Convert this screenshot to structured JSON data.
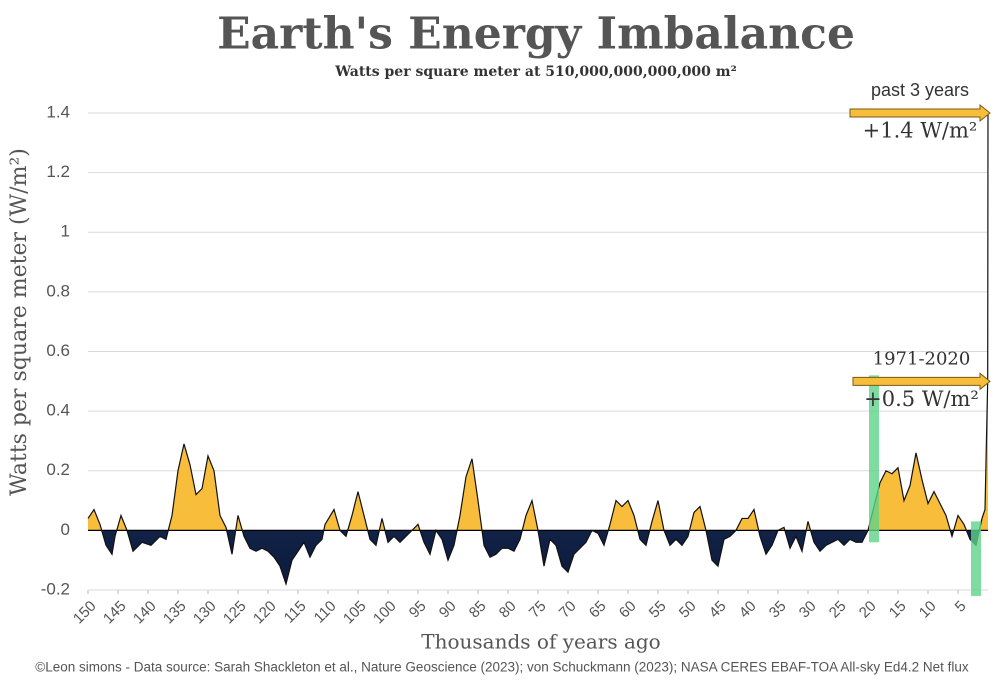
{
  "chart_data": {
    "type": "area",
    "title": "Earth's Energy Imbalance",
    "subtitle": "Watts per square meter at 510,000,000,000,000 m²",
    "x_label": "Thousands of years ago",
    "y_label": "Watts per square meter (W/m²)",
    "source": "©Leon simons - Data source: Sarah Shackleton et al., Nature Geoscience (2023); von Schuckmann (2023); NASA CERES EBAF-TOA All-sky Ed4.2 Net flux",
    "xlim": [
      150,
      0
    ],
    "xticks": [
      150,
      145,
      140,
      135,
      130,
      125,
      120,
      115,
      110,
      105,
      100,
      95,
      90,
      85,
      80,
      75,
      70,
      65,
      60,
      55,
      50,
      45,
      40,
      35,
      30,
      25,
      20,
      15,
      10,
      5
    ],
    "ylim": [
      -0.2,
      1.4
    ],
    "yticks": [
      -0.2,
      0,
      0.2,
      0.4,
      0.6,
      0.8,
      1,
      1.2,
      1.4
    ],
    "grid": true,
    "positive_color": "#f7bd3b",
    "negative_color": "#3c63b0",
    "x": [
      150,
      149,
      148,
      147,
      146,
      145.5,
      144.5,
      143.5,
      142.5,
      141,
      139.5,
      138,
      137,
      136,
      135,
      134,
      133,
      132,
      131,
      130,
      129,
      128,
      127,
      126,
      125,
      124,
      123,
      122,
      121,
      120,
      119,
      118,
      117,
      116,
      115,
      114,
      113,
      112,
      111,
      110.5,
      109,
      108,
      107,
      106,
      105,
      104,
      103,
      102,
      101,
      100,
      99,
      98,
      97,
      96,
      95,
      94,
      93,
      92,
      91,
      90,
      89,
      88,
      87,
      86,
      85,
      84,
      83,
      82,
      81,
      80,
      79,
      78,
      77,
      76,
      75,
      74,
      73,
      72,
      71,
      70,
      69,
      68,
      67,
      66,
      65,
      64,
      63,
      62,
      61,
      60,
      59,
      58,
      57,
      56,
      55,
      54,
      53,
      52,
      51,
      50,
      49,
      48,
      47,
      46,
      45,
      44,
      43,
      42,
      41,
      40,
      39,
      38,
      37,
      36,
      35,
      34,
      33,
      32,
      31,
      30,
      29,
      28,
      27,
      26,
      25,
      24,
      23,
      22,
      21,
      20,
      19,
      18,
      17,
      16,
      15,
      14,
      13,
      12,
      11,
      10,
      9,
      8,
      7,
      6,
      5,
      4,
      3,
      2,
      1,
      0.5,
      0.05,
      0
    ],
    "values": [
      0.04,
      0.07,
      0.02,
      -0.05,
      -0.08,
      -0.02,
      0.05,
      0,
      -0.07,
      -0.04,
      -0.05,
      -0.02,
      -0.03,
      0.05,
      0.2,
      0.29,
      0.22,
      0.12,
      0.14,
      0.25,
      0.2,
      0.05,
      0.01,
      -0.08,
      0.05,
      -0.02,
      -0.06,
      -0.07,
      -0.06,
      -0.07,
      -0.09,
      -0.12,
      -0.18,
      -0.1,
      -0.07,
      -0.04,
      -0.09,
      -0.05,
      -0.03,
      0.02,
      0.07,
      0,
      -0.02,
      0.05,
      0.13,
      0.05,
      -0.03,
      -0.05,
      0.04,
      -0.04,
      -0.02,
      -0.04,
      -0.02,
      0,
      0.02,
      -0.04,
      -0.08,
      0,
      -0.03,
      -0.1,
      -0.05,
      0.05,
      0.18,
      0.24,
      0.1,
      -0.05,
      -0.09,
      -0.08,
      -0.06,
      -0.06,
      -0.07,
      -0.03,
      0.05,
      0.1,
      0,
      -0.12,
      -0.03,
      -0.05,
      -0.12,
      -0.14,
      -0.08,
      -0.06,
      -0.04,
      0,
      -0.01,
      -0.05,
      0.02,
      0.1,
      0.08,
      0.1,
      0.05,
      -0.03,
      -0.05,
      0.03,
      0.1,
      0,
      -0.05,
      -0.03,
      -0.05,
      -0.02,
      0.06,
      0.08,
      0,
      -0.1,
      -0.12,
      -0.03,
      -0.02,
      0,
      0.04,
      0.04,
      0.07,
      -0.02,
      -0.08,
      -0.05,
      0,
      0.01,
      -0.06,
      -0.02,
      -0.07,
      0.03,
      -0.04,
      -0.07,
      -0.05,
      -0.04,
      -0.03,
      -0.05,
      -0.03,
      -0.04,
      -0.04,
      0,
      0.08,
      0.16,
      0.2,
      0.19,
      0.21,
      0.1,
      0.15,
      0.26,
      0.17,
      0.09,
      0.13,
      0.09,
      0.05,
      -0.02,
      0.05,
      0.02,
      -0.03,
      -0.05,
      0.04,
      0.07,
      0.5,
      1.4
    ],
    "highlights": [
      {
        "x": 19,
        "ymin": -0.04,
        "ymax": 0.52
      },
      {
        "x": 2,
        "ymin": -0.22,
        "ymax": 0.03
      }
    ],
    "annotations": [
      {
        "label": "past 3 years",
        "value_label": "+1.4 W/m²",
        "y": 1.4,
        "x_start": 23
      },
      {
        "label": "1971-2020",
        "value_label": "+0.5 W/m²",
        "y": 0.5,
        "x_start": 22.5
      }
    ]
  }
}
